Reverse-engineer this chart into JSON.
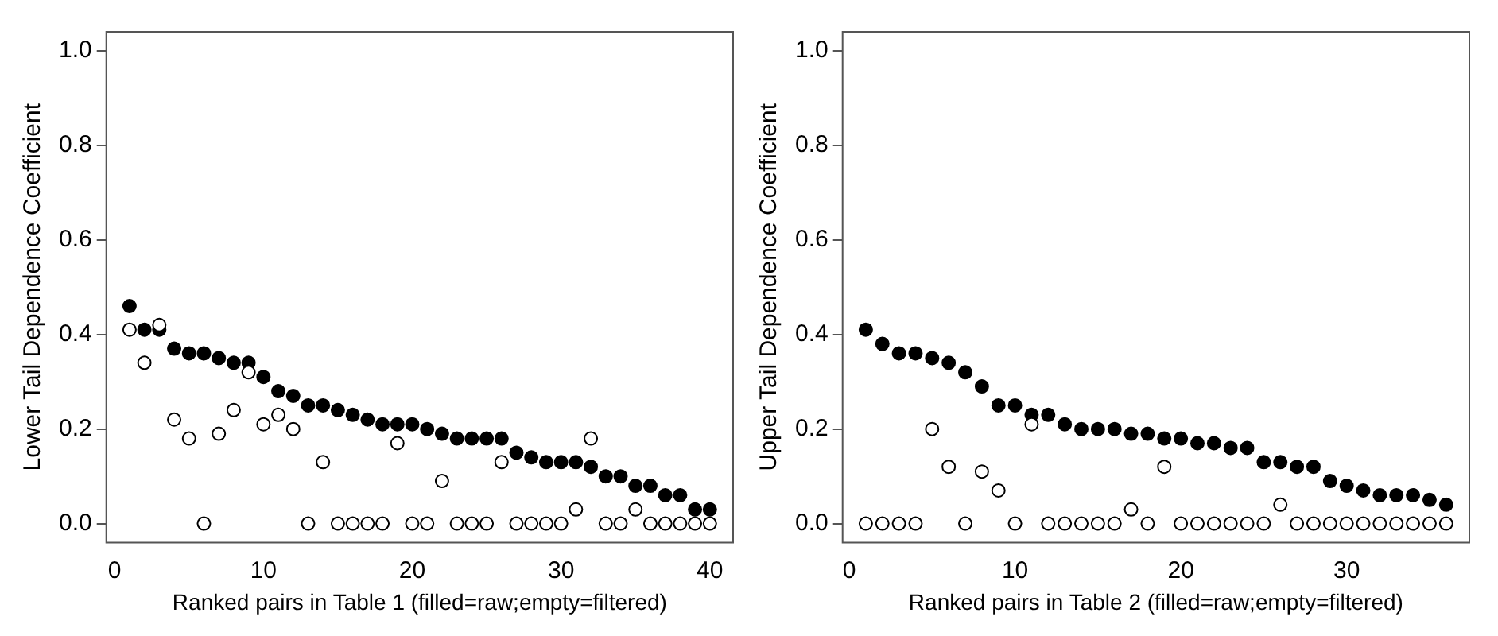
{
  "chart_data": [
    {
      "type": "scatter",
      "xlabel": "Ranked pairs in Table 1 (filled=raw;empty=filtered)",
      "ylabel": "Lower Tail Dependence Coefficient",
      "x": [
        1,
        2,
        3,
        4,
        5,
        6,
        7,
        8,
        9,
        10,
        11,
        12,
        13,
        14,
        15,
        16,
        17,
        18,
        19,
        20,
        21,
        22,
        23,
        24,
        25,
        26,
        27,
        28,
        29,
        30,
        31,
        32,
        33,
        34,
        35,
        36,
        37,
        38,
        39,
        40
      ],
      "series": [
        {
          "color": "#000000",
          "values": [
            0.46,
            0.41,
            0.41,
            0.37,
            0.36,
            0.36,
            0.35,
            0.34,
            0.34,
            0.31,
            0.28,
            0.27,
            0.25,
            0.25,
            0.24,
            0.23,
            0.22,
            0.21,
            0.21,
            0.21,
            0.2,
            0.19,
            0.18,
            0.18,
            0.18,
            0.18,
            0.15,
            0.14,
            0.13,
            0.13,
            0.13,
            0.12,
            0.1,
            0.1,
            0.08,
            0.08,
            0.06,
            0.06,
            0.03,
            0.03
          ]
        },
        {
          "color": "#ffffff",
          "values": [
            0.41,
            0.34,
            0.42,
            0.22,
            0.18,
            0,
            0.19,
            0.24,
            0.32,
            0.21,
            0.23,
            0.2,
            0,
            0.13,
            0,
            0,
            0,
            0,
            0.17,
            0,
            0,
            0.09,
            0,
            0,
            0,
            0.13,
            0,
            0,
            0,
            0,
            0.03,
            0.18,
            0,
            0,
            0.03,
            0,
            0,
            0,
            0,
            0
          ]
        }
      ],
      "xlim": [
        -0.56,
        41.56
      ],
      "xticks": [
        0,
        10,
        20,
        30,
        40
      ],
      "ylim": [
        -0.04,
        1.04
      ],
      "yticks": [
        {
          "value": 0,
          "label": "0.0"
        },
        {
          "value": 0.2,
          "label": "0.2"
        },
        {
          "value": 0.4,
          "label": "0.4"
        },
        {
          "value": 0.6,
          "label": "0.6"
        },
        {
          "value": 0.8,
          "label": "0.8"
        },
        {
          "value": 1,
          "label": "1.0"
        }
      ],
      "grid": false,
      "legend": false,
      "marker": "circle"
    },
    {
      "type": "scatter",
      "xlabel": "Ranked pairs in Table 2 (filled=raw;empty=filtered)",
      "ylabel": "Upper Tail Dependence Coefficient",
      "x": [
        1,
        2,
        3,
        4,
        5,
        6,
        7,
        8,
        9,
        10,
        11,
        12,
        13,
        14,
        15,
        16,
        17,
        18,
        19,
        20,
        21,
        22,
        23,
        24,
        25,
        26,
        27,
        28,
        29,
        30,
        31,
        32,
        33,
        34,
        35,
        36
      ],
      "series": [
        {
          "color": "#000000",
          "values": [
            0.41,
            0.38,
            0.36,
            0.36,
            0.35,
            0.34,
            0.32,
            0.29,
            0.25,
            0.25,
            0.23,
            0.23,
            0.21,
            0.2,
            0.2,
            0.2,
            0.19,
            0.19,
            0.18,
            0.18,
            0.17,
            0.17,
            0.16,
            0.16,
            0.13,
            0.13,
            0.12,
            0.12,
            0.09,
            0.08,
            0.07,
            0.06,
            0.06,
            0.06,
            0.05,
            0.04
          ]
        },
        {
          "color": "#ffffff",
          "values": [
            0,
            0,
            0,
            0,
            0.2,
            0.12,
            0,
            0.11,
            0.07,
            0,
            0.21,
            0,
            0,
            0,
            0,
            0,
            0.03,
            0,
            0.12,
            0,
            0,
            0,
            0,
            0,
            0,
            0.04,
            0,
            0,
            0,
            0,
            0,
            0,
            0,
            0,
            0,
            0
          ]
        }
      ],
      "xlim": [
        -0.4,
        37.4
      ],
      "xticks": [
        0,
        10,
        20,
        30
      ],
      "ylim": [
        -0.04,
        1.04
      ],
      "yticks": [
        {
          "value": 0,
          "label": "0.0"
        },
        {
          "value": 0.2,
          "label": "0.2"
        },
        {
          "value": 0.4,
          "label": "0.4"
        },
        {
          "value": 0.6,
          "label": "0.6"
        },
        {
          "value": 0.8,
          "label": "0.8"
        },
        {
          "value": 1,
          "label": "1.0"
        }
      ],
      "grid": false,
      "legend": false,
      "marker": "circle"
    }
  ]
}
